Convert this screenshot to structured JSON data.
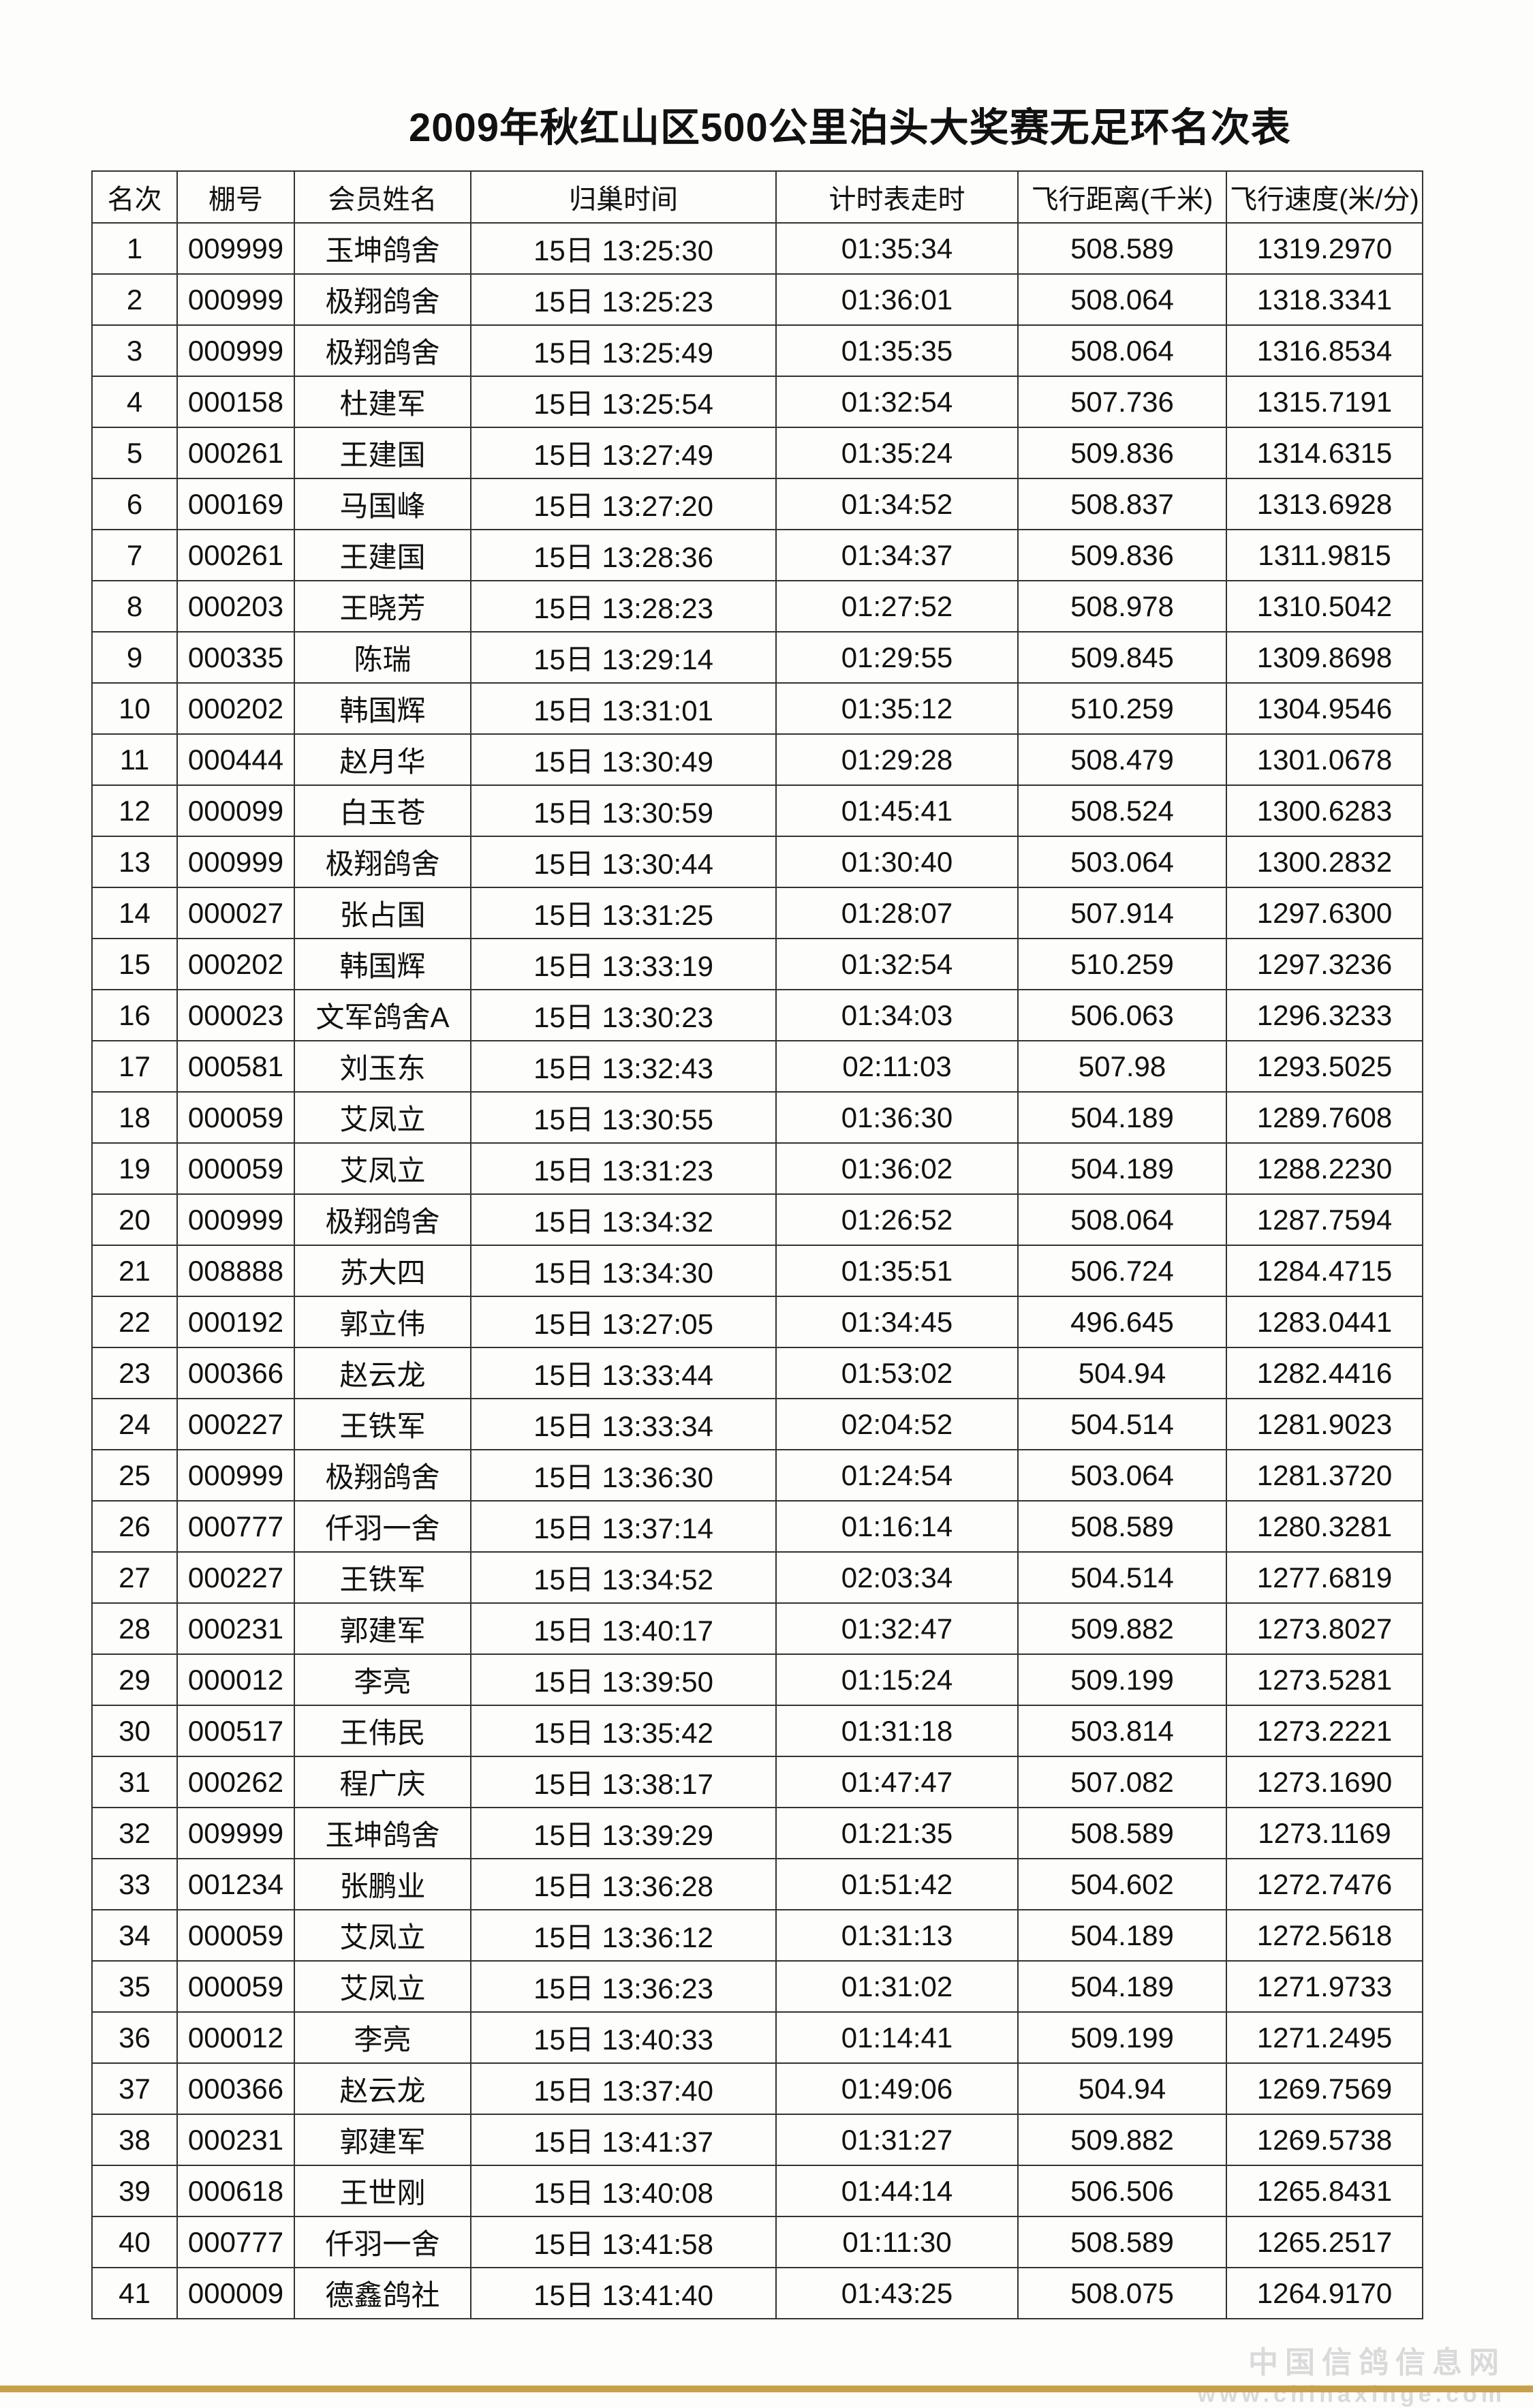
{
  "title": "2009年秋红山区500公里泊头大奖赛无足环名次表",
  "columns": [
    "名次",
    "棚号",
    "会员姓名",
    "归巢时间",
    "计时表走时",
    "飞行距离(千米)",
    "飞行速度(米/分)"
  ],
  "rows": [
    [
      "1",
      "009999",
      "玉坤鸽舍",
      "15日 13:25:30",
      "01:35:34",
      "508.589",
      "1319.2970"
    ],
    [
      "2",
      "000999",
      "极翔鸽舍",
      "15日 13:25:23",
      "01:36:01",
      "508.064",
      "1318.3341"
    ],
    [
      "3",
      "000999",
      "极翔鸽舍",
      "15日 13:25:49",
      "01:35:35",
      "508.064",
      "1316.8534"
    ],
    [
      "4",
      "000158",
      "杜建军",
      "15日 13:25:54",
      "01:32:54",
      "507.736",
      "1315.7191"
    ],
    [
      "5",
      "000261",
      "王建国",
      "15日 13:27:49",
      "01:35:24",
      "509.836",
      "1314.6315"
    ],
    [
      "6",
      "000169",
      "马国峰",
      "15日 13:27:20",
      "01:34:52",
      "508.837",
      "1313.6928"
    ],
    [
      "7",
      "000261",
      "王建国",
      "15日 13:28:36",
      "01:34:37",
      "509.836",
      "1311.9815"
    ],
    [
      "8",
      "000203",
      "王晓芳",
      "15日 13:28:23",
      "01:27:52",
      "508.978",
      "1310.5042"
    ],
    [
      "9",
      "000335",
      "陈瑞",
      "15日 13:29:14",
      "01:29:55",
      "509.845",
      "1309.8698"
    ],
    [
      "10",
      "000202",
      "韩国辉",
      "15日 13:31:01",
      "01:35:12",
      "510.259",
      "1304.9546"
    ],
    [
      "11",
      "000444",
      "赵月华",
      "15日 13:30:49",
      "01:29:28",
      "508.479",
      "1301.0678"
    ],
    [
      "12",
      "000099",
      "白玉苍",
      "15日 13:30:59",
      "01:45:41",
      "508.524",
      "1300.6283"
    ],
    [
      "13",
      "000999",
      "极翔鸽舍",
      "15日 13:30:44",
      "01:30:40",
      "503.064",
      "1300.2832"
    ],
    [
      "14",
      "000027",
      "张占国",
      "15日 13:31:25",
      "01:28:07",
      "507.914",
      "1297.6300"
    ],
    [
      "15",
      "000202",
      "韩国辉",
      "15日 13:33:19",
      "01:32:54",
      "510.259",
      "1297.3236"
    ],
    [
      "16",
      "000023",
      "文军鸽舍A",
      "15日 13:30:23",
      "01:34:03",
      "506.063",
      "1296.3233"
    ],
    [
      "17",
      "000581",
      "刘玉东",
      "15日 13:32:43",
      "02:11:03",
      "507.98",
      "1293.5025"
    ],
    [
      "18",
      "000059",
      "艾凤立",
      "15日 13:30:55",
      "01:36:30",
      "504.189",
      "1289.7608"
    ],
    [
      "19",
      "000059",
      "艾凤立",
      "15日 13:31:23",
      "01:36:02",
      "504.189",
      "1288.2230"
    ],
    [
      "20",
      "000999",
      "极翔鸽舍",
      "15日 13:34:32",
      "01:26:52",
      "508.064",
      "1287.7594"
    ],
    [
      "21",
      "008888",
      "苏大四",
      "15日 13:34:30",
      "01:35:51",
      "506.724",
      "1284.4715"
    ],
    [
      "22",
      "000192",
      "郭立伟",
      "15日 13:27:05",
      "01:34:45",
      "496.645",
      "1283.0441"
    ],
    [
      "23",
      "000366",
      "赵云龙",
      "15日 13:33:44",
      "01:53:02",
      "504.94",
      "1282.4416"
    ],
    [
      "24",
      "000227",
      "王铁军",
      "15日 13:33:34",
      "02:04:52",
      "504.514",
      "1281.9023"
    ],
    [
      "25",
      "000999",
      "极翔鸽舍",
      "15日 13:36:30",
      "01:24:54",
      "503.064",
      "1281.3720"
    ],
    [
      "26",
      "000777",
      "仟羽一舍",
      "15日 13:37:14",
      "01:16:14",
      "508.589",
      "1280.3281"
    ],
    [
      "27",
      "000227",
      "王铁军",
      "15日 13:34:52",
      "02:03:34",
      "504.514",
      "1277.6819"
    ],
    [
      "28",
      "000231",
      "郭建军",
      "15日 13:40:17",
      "01:32:47",
      "509.882",
      "1273.8027"
    ],
    [
      "29",
      "000012",
      "李亮",
      "15日 13:39:50",
      "01:15:24",
      "509.199",
      "1273.5281"
    ],
    [
      "30",
      "000517",
      "王伟民",
      "15日 13:35:42",
      "01:31:18",
      "503.814",
      "1273.2221"
    ],
    [
      "31",
      "000262",
      "程广庆",
      "15日 13:38:17",
      "01:47:47",
      "507.082",
      "1273.1690"
    ],
    [
      "32",
      "009999",
      "玉坤鸽舍",
      "15日 13:39:29",
      "01:21:35",
      "508.589",
      "1273.1169"
    ],
    [
      "33",
      "001234",
      "张鹏业",
      "15日 13:36:28",
      "01:51:42",
      "504.602",
      "1272.7476"
    ],
    [
      "34",
      "000059",
      "艾凤立",
      "15日 13:36:12",
      "01:31:13",
      "504.189",
      "1272.5618"
    ],
    [
      "35",
      "000059",
      "艾凤立",
      "15日 13:36:23",
      "01:31:02",
      "504.189",
      "1271.9733"
    ],
    [
      "36",
      "000012",
      "李亮",
      "15日 13:40:33",
      "01:14:41",
      "509.199",
      "1271.2495"
    ],
    [
      "37",
      "000366",
      "赵云龙",
      "15日 13:37:40",
      "01:49:06",
      "504.94",
      "1269.7569"
    ],
    [
      "38",
      "000231",
      "郭建军",
      "15日 13:41:37",
      "01:31:27",
      "509.882",
      "1269.5738"
    ],
    [
      "39",
      "000618",
      "王世刚",
      "15日 13:40:08",
      "01:44:14",
      "506.506",
      "1265.8431"
    ],
    [
      "40",
      "000777",
      "仟羽一舍",
      "15日 13:41:58",
      "01:11:30",
      "508.589",
      "1265.2517"
    ],
    [
      "41",
      "000009",
      "德鑫鸽社",
      "15日 13:41:40",
      "01:43:25",
      "508.075",
      "1264.9170"
    ]
  ],
  "watermark": {
    "name": "中国信鸽信息网",
    "url": "www.chinaxinge.com"
  }
}
